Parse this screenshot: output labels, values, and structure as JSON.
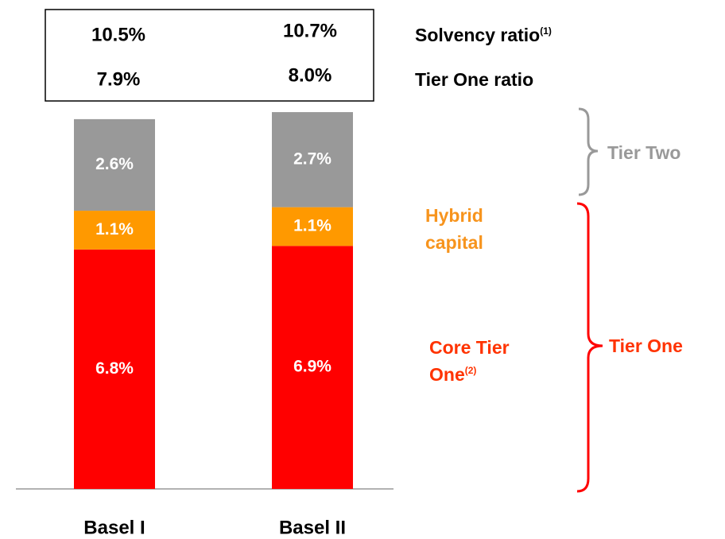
{
  "chart_data": {
    "type": "stacked_bar",
    "categories": [
      "Basel I",
      "Basel II"
    ],
    "series": [
      {
        "name": "Core Tier One",
        "note": "(2)",
        "color": "#ff0000",
        "values": [
          6.8,
          6.9
        ],
        "value_labels": [
          "6.8%",
          "6.9%"
        ]
      },
      {
        "name": "Hybrid capital",
        "color": "#ff9900",
        "values": [
          1.1,
          1.1
        ],
        "value_labels": [
          "1.1%",
          "1.1%"
        ]
      },
      {
        "name": "Tier Two",
        "color": "#999999",
        "values": [
          2.6,
          2.7
        ],
        "value_labels": [
          "2.6%",
          "2.7%"
        ]
      }
    ],
    "ylim": [
      0,
      13.5
    ],
    "ratios": [
      {
        "name": "Solvency ratio",
        "note": "(1)",
        "values": [
          10.5,
          10.7
        ],
        "value_labels": [
          "10.5%",
          "10.7%"
        ]
      },
      {
        "name": "Tier One ratio",
        "values": [
          7.9,
          8.0
        ],
        "value_labels": [
          "7.9%",
          "8.0%"
        ]
      }
    ],
    "groups": [
      {
        "label": "Tier Two",
        "color": "#999999"
      },
      {
        "label": "Tier One",
        "color": "#ff3300"
      }
    ]
  }
}
